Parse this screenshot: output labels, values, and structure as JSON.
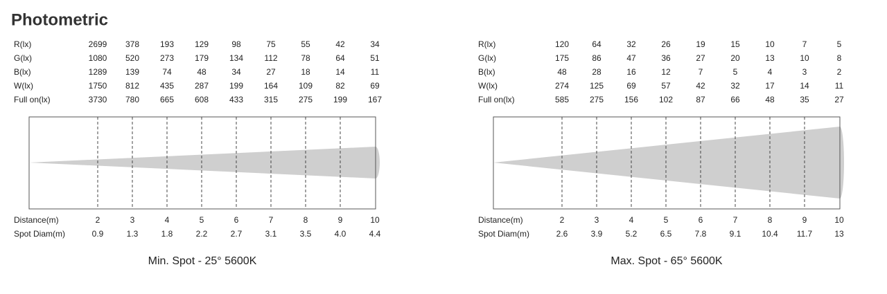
{
  "title": "Photometric",
  "panels": [
    {
      "rows": [
        {
          "label": "R(lx)",
          "values": [
            "2699",
            "378",
            "193",
            "129",
            "98",
            "75",
            "55",
            "42",
            "34"
          ]
        },
        {
          "label": "G(lx)",
          "values": [
            "1080",
            "520",
            "273",
            "179",
            "134",
            "112",
            "78",
            "64",
            "51"
          ]
        },
        {
          "label": "B(lx)",
          "values": [
            "1289",
            "139",
            "74",
            "48",
            "34",
            "27",
            "18",
            "14",
            "11"
          ]
        },
        {
          "label": "W(lx)",
          "values": [
            "1750",
            "812",
            "435",
            "287",
            "199",
            "164",
            "109",
            "82",
            "69"
          ]
        },
        {
          "label": "Full on(lx)",
          "values": [
            "3730",
            "780",
            "665",
            "608",
            "433",
            "315",
            "275",
            "199",
            "167"
          ]
        }
      ],
      "distance": {
        "label": "Distance(m)",
        "values": [
          "2",
          "3",
          "4",
          "5",
          "6",
          "7",
          "8",
          "9",
          "10"
        ]
      },
      "spot": {
        "label": "Spot Diam(m)",
        "values": [
          "0.9",
          "1.3",
          "1.8",
          "2.2",
          "2.7",
          "3.1",
          "3.5",
          "4.0",
          "4.4"
        ]
      },
      "caption": "Min. Spot - 25° 5600K"
    },
    {
      "rows": [
        {
          "label": "R(lx)",
          "values": [
            "120",
            "64",
            "32",
            "26",
            "19",
            "15",
            "10",
            "7",
            "5"
          ]
        },
        {
          "label": "G(lx)",
          "values": [
            "175",
            "86",
            "47",
            "36",
            "27",
            "20",
            "13",
            "10",
            "8"
          ]
        },
        {
          "label": "B(lx)",
          "values": [
            "48",
            "28",
            "16",
            "12",
            "7",
            "5",
            "4",
            "3",
            "2"
          ]
        },
        {
          "label": "W(lx)",
          "values": [
            "274",
            "125",
            "69",
            "57",
            "42",
            "32",
            "17",
            "14",
            "11"
          ]
        },
        {
          "label": "Full on(lx)",
          "values": [
            "585",
            "275",
            "156",
            "102",
            "87",
            "66",
            "48",
            "35",
            "27"
          ]
        }
      ],
      "distance": {
        "label": "Distance(m)",
        "values": [
          "2",
          "3",
          "4",
          "5",
          "6",
          "7",
          "8",
          "9",
          "10"
        ]
      },
      "spot": {
        "label": "Spot Diam(m)",
        "values": [
          "2.6",
          "3.9",
          "5.2",
          "6.5",
          "7.8",
          "9.1",
          "10.4",
          "11.7",
          "13"
        ]
      },
      "caption": "Max. Spot - 65° 5600K"
    }
  ]
}
